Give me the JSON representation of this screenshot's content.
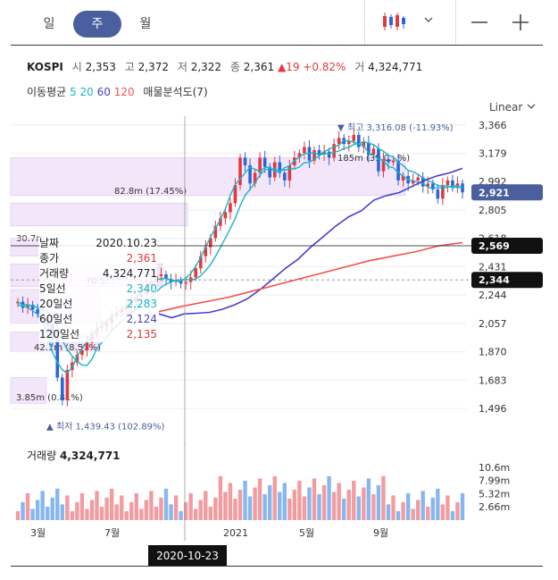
{
  "tabs": [
    {
      "label": "일",
      "active": false
    },
    {
      "label": "주",
      "active": true
    },
    {
      "label": "월",
      "active": false
    }
  ],
  "toolbar": {
    "chart_type_icon": "candlestick-icon",
    "dropdown_icon": "chevron-down-icon",
    "minus_icon": "zoom-out-icon",
    "plus_icon": "zoom-in-icon"
  },
  "ticker": {
    "name": "KOSPI",
    "open_label": "시",
    "open": "2,353",
    "high_label": "고",
    "high": "2,372",
    "low_label": "저",
    "low": "2,322",
    "close_label": "종",
    "close": "2,361",
    "change": "▲19",
    "change_pct": "+0.82%",
    "volume_label": "거",
    "volume": "4,324,771"
  },
  "legend": {
    "ma_label": "이동평균",
    "ma5": "5",
    "ma20": "20",
    "ma60": "60",
    "ma120": "120",
    "volume_profile": "매물분석도(7)"
  },
  "scale_mode": "Linear",
  "tooltip": [
    {
      "label": "날짜",
      "value": "2020.10.23",
      "color": "#222222"
    },
    {
      "label": "종가",
      "value": "2,361",
      "color": "#e0393e"
    },
    {
      "label": "거래량",
      "value": "4,324,771",
      "color": "#222222"
    },
    {
      "label": "5일선",
      "value": "2,340",
      "color": "#18b4c8"
    },
    {
      "label": "20일선",
      "value": "2,283",
      "color": "#18b4c8"
    },
    {
      "label": "60일선",
      "value": "2,124",
      "color": "#4a3fcf"
    },
    {
      "label": "120일선",
      "value": "2,135",
      "color": "#e0393e"
    }
  ],
  "price_badges": {
    "last": "2,921",
    "hover": "2,569",
    "ma": "2,344"
  },
  "profile_labels": [
    "30.7m",
    "82.8m (17.45%)",
    "185m (39.0...%)",
    "42.1m (8.57%)",
    "3.85m (0.81%)",
    "70.5..."
  ],
  "high_label": "최고 3,316.08 (-11.93%)",
  "low_label": "최저 1,439.43 (102.89%)",
  "volume_title": "거래량",
  "volume_value": "4,324,771",
  "volume_ticks": [
    "10.6m",
    "7.99m",
    "5.32m",
    "2.66m"
  ],
  "x_labels": [
    "3월",
    "7월",
    "2021",
    "5월",
    "9월"
  ],
  "crosshair_date": "2020-10-23",
  "colors": {
    "up": "#e0393e",
    "down": "#2a66d6",
    "ma5": "#18b4c8",
    "ma20": "#18b4c8",
    "ma60": "#4a3fcf",
    "ma120": "#ef5350",
    "profile": "#f3e6fb",
    "badge_blue": "#4a5f9e"
  },
  "chart_data": {
    "type": "candlestick",
    "y_ticks": [
      3366,
      3179,
      2992,
      2805,
      2618,
      2431,
      2244,
      2057,
      1870,
      1683,
      1496
    ],
    "ylim": [
      1420,
      3400
    ],
    "x_labels": [
      "3월",
      "7월",
      "2021",
      "5월",
      "9월"
    ],
    "closes": [
      2200,
      2160,
      2180,
      2150,
      2120,
      2090,
      2050,
      1950,
      1700,
      1550,
      1750,
      1800,
      1850,
      1880,
      1930,
      1990,
      2030,
      2040,
      2060,
      2110,
      2130,
      2150,
      2170,
      2200,
      2230,
      2250,
      2300,
      2330,
      2370,
      2380,
      2350,
      2330,
      2340,
      2320,
      2330,
      2361,
      2420,
      2500,
      2560,
      2620,
      2700,
      2750,
      2790,
      2850,
      2970,
      3150,
      3100,
      2980,
      3050,
      3150,
      3090,
      3020,
      3120,
      3050,
      3000,
      3100,
      3150,
      3180,
      3220,
      3130,
      3200,
      3170,
      3190,
      3150,
      3240,
      3280,
      3240,
      3260,
      3300,
      3220,
      3250,
      3170,
      3210,
      3060,
      3140,
      3120,
      3130,
      3000,
      3030,
      2980,
      3000,
      3020,
      2960,
      2980,
      2940,
      2880,
      2970,
      3000,
      2950,
      2980,
      2921
    ],
    "ma60": [
      2120,
      2095,
      2120,
      2124,
      2130,
      2150,
      2180,
      2220,
      2280,
      2350,
      2420,
      2480,
      2560,
      2630,
      2700,
      2760,
      2800,
      2870,
      2900,
      2920,
      2960,
      3000,
      3030,
      3050,
      3080
    ],
    "ma120": [
      2135,
      2170,
      2200,
      2230,
      2270,
      2310,
      2350,
      2390,
      2430,
      2470,
      2500,
      2530,
      2569,
      2590
    ],
    "volume_ticks": [
      10.6,
      7.99,
      5.32,
      2.66
    ]
  }
}
